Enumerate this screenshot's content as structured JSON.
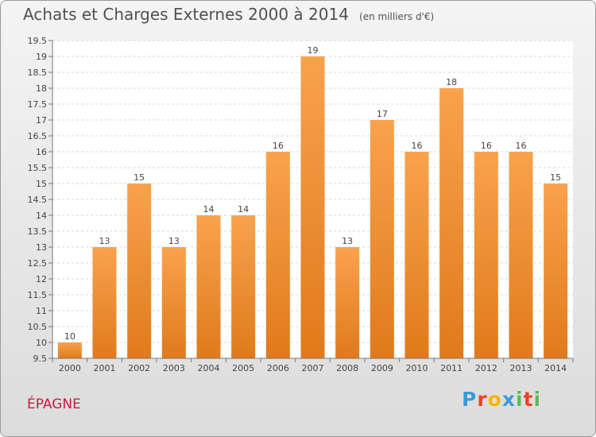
{
  "chart_data": {
    "type": "bar",
    "title": "Achats et Charges Externes 2000 à 2014",
    "unit_note": "(en milliers d'€)",
    "categories": [
      "2000",
      "2001",
      "2002",
      "2003",
      "2004",
      "2005",
      "2006",
      "2007",
      "2008",
      "2009",
      "2010",
      "2011",
      "2012",
      "2013",
      "2014"
    ],
    "values": [
      10,
      13,
      15,
      13,
      14,
      14,
      16,
      19,
      13,
      17,
      16,
      18,
      16,
      16,
      15
    ],
    "data_labels": [
      "10",
      "13",
      "15",
      "13",
      "14",
      "14",
      "16",
      "19",
      "13",
      "17",
      "16",
      "18",
      "16",
      "16",
      "15"
    ],
    "ylim": [
      9.5,
      19.5
    ],
    "yticks": [
      9.5,
      10,
      10.5,
      11,
      11.5,
      12,
      12.5,
      13,
      13.5,
      14,
      14.5,
      15,
      15.5,
      16,
      16.5,
      17,
      17.5,
      18,
      18.5,
      19,
      19.5
    ],
    "ytick_labels": [
      "9.5",
      "10",
      "10.5",
      "11",
      "11.5",
      "12",
      "12.5",
      "13",
      "13.5",
      "14",
      "14.5",
      "15",
      "15.5",
      "16",
      "16.5",
      "17",
      "17.5",
      "18",
      "18.5",
      "19",
      "19.5"
    ],
    "grid": true,
    "bar_color_top": "#f9a24c",
    "bar_color_bottom": "#e07a1c"
  },
  "footer": {
    "commune": "ÉPAGNE",
    "logo_letters": [
      "P",
      "r",
      "o",
      "x",
      "i",
      "t",
      "i"
    ],
    "logo_colors": [
      "#3a9ad9",
      "#e8442a",
      "#f4b400",
      "#3a9ad9",
      "#5cb85c",
      "#e8442a",
      "#5cb85c"
    ]
  }
}
